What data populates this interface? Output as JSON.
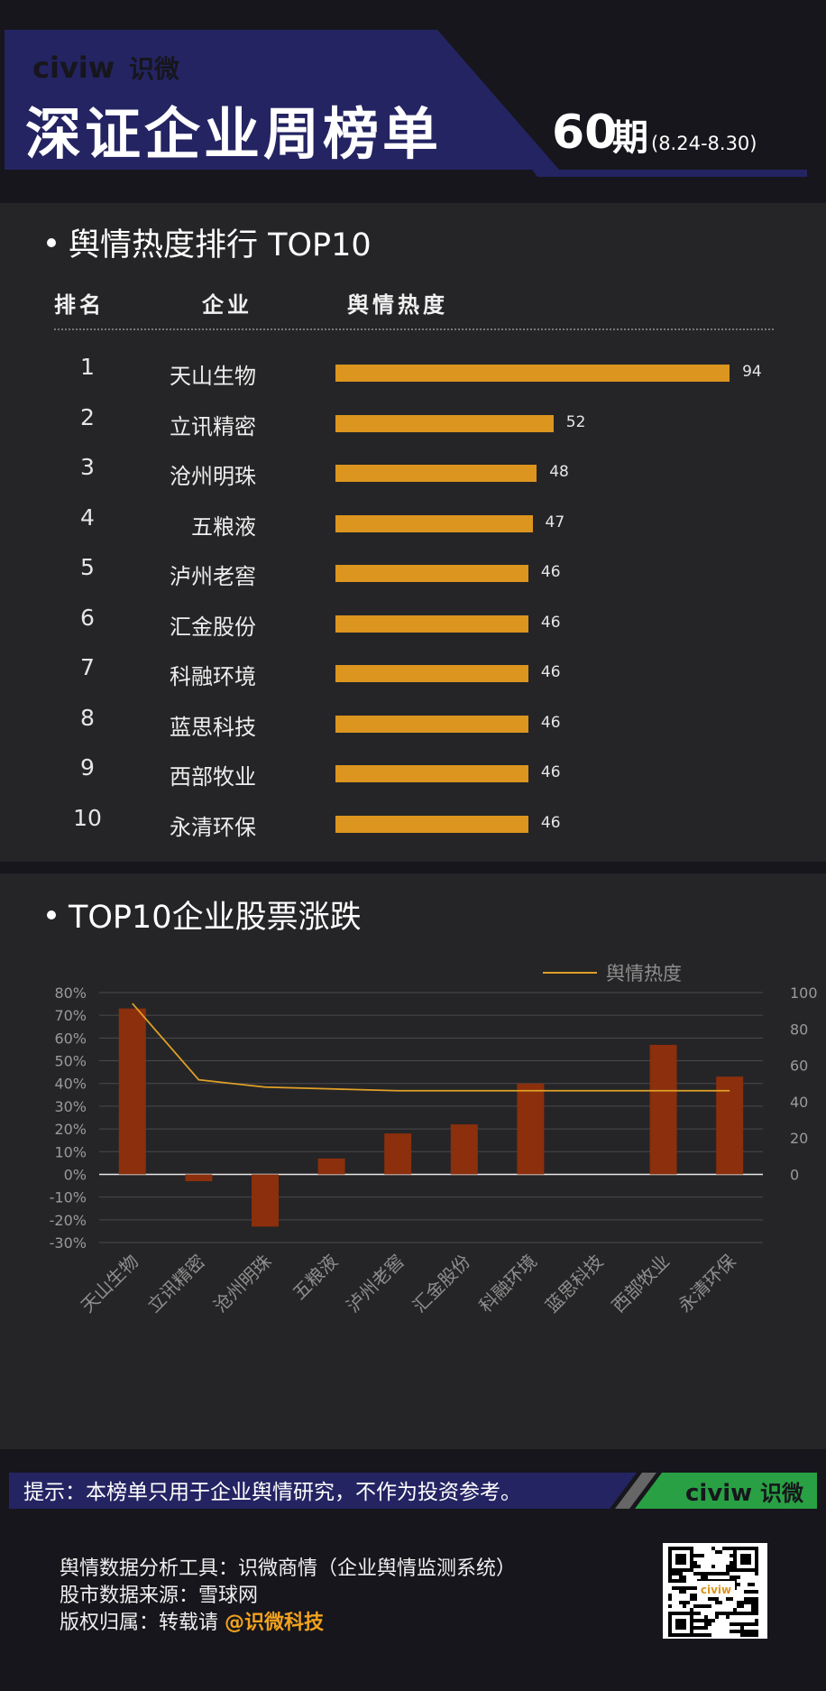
{
  "header": {
    "logo_latin": "civiw",
    "logo_cn": "识微",
    "title": "深证企业周榜单",
    "issue_number": "60",
    "issue_suffix": "期",
    "date_range": "(8.24-8.30)"
  },
  "section1": {
    "title": "舆情热度排行 TOP10",
    "col_rank": "排名",
    "col_company": "企业",
    "col_heat": "舆情热度"
  },
  "ranking": [
    {
      "rank": "1",
      "company": "天山生物",
      "heat": 94
    },
    {
      "rank": "2",
      "company": "立讯精密",
      "heat": 52
    },
    {
      "rank": "3",
      "company": "沧州明珠",
      "heat": 48
    },
    {
      "rank": "4",
      "company": "五粮液",
      "heat": 47
    },
    {
      "rank": "5",
      "company": "泸州老窖",
      "heat": 46
    },
    {
      "rank": "6",
      "company": "汇金股份",
      "heat": 46
    },
    {
      "rank": "7",
      "company": "科融环境",
      "heat": 46
    },
    {
      "rank": "8",
      "company": "蓝思科技",
      "heat": 46
    },
    {
      "rank": "9",
      "company": "西部牧业",
      "heat": 46
    },
    {
      "rank": "10",
      "company": "永清环保",
      "heat": 46
    }
  ],
  "section2": {
    "title": "TOP10企业股票涨跌"
  },
  "chart_data": {
    "type": "bar",
    "categories": [
      "天山生物",
      "立讯精密",
      "沧州明珠",
      "五粮液",
      "泸州老窖",
      "汇金股份",
      "科融环境",
      "蓝思科技",
      "西部牧业",
      "永清环保"
    ],
    "series": [
      {
        "type": "bar",
        "axis": "left",
        "values": [
          73,
          -3,
          -23,
          7,
          18,
          22,
          40,
          0,
          57,
          43
        ]
      },
      {
        "type": "line",
        "name": "舆情热度",
        "axis": "right",
        "values": [
          94,
          52,
          48,
          47,
          46,
          46,
          46,
          46,
          46,
          46
        ]
      }
    ],
    "y_left": {
      "ticks": [
        "80%",
        "70%",
        "60%",
        "50%",
        "40%",
        "30%",
        "20%",
        "10%",
        "0%",
        "-10%",
        "-20%",
        "-30%"
      ],
      "range": [
        -30,
        80
      ]
    },
    "y_right": {
      "ticks": [
        "100",
        "80",
        "60",
        "40",
        "20",
        "0"
      ],
      "range": [
        0,
        100
      ]
    },
    "legend_position": "top-right",
    "colors": {
      "bar": "#8b2f0c",
      "line": "#e0a026",
      "grid": "#4a4a4e"
    }
  },
  "tip": {
    "text": "提示：本榜单只用于企业舆情研究，不作为投资参考。",
    "logo_latin": "civiw",
    "logo_cn": "识微"
  },
  "footer": {
    "line1": "舆情数据分析工具：识微商情（企业舆情监测系统）",
    "line2": "股市数据来源：雪球网",
    "line3_prefix": "版权归属：转载请 ",
    "line3_highlight": "@识微科技"
  },
  "qr": {
    "center_label": "civiw"
  },
  "colors": {
    "background": "#16161c",
    "panel": "#252527",
    "header_blue": "#242463",
    "accent_orange": "#dc951f",
    "tip_green": "#29a044"
  }
}
